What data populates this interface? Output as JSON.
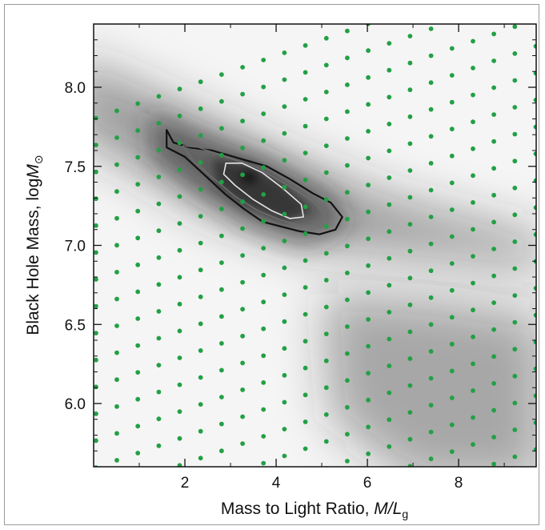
{
  "chart_data": {
    "type": "scatter",
    "title": "",
    "xlabel_parts": {
      "main": "Mass to Light Ratio, ",
      "var": "M/L",
      "sub": "g"
    },
    "ylabel_parts": {
      "main": "Black Hole Mass, log",
      "var": "M",
      "sub": "⊙"
    },
    "xlim": [
      0,
      9.7
    ],
    "ylim": [
      5.6,
      8.4
    ],
    "x_ticks": [
      2,
      4,
      6,
      8
    ],
    "x_tick_labels": [
      "2",
      "4",
      "6",
      "8"
    ],
    "y_ticks": [
      6.0,
      6.5,
      7.0,
      7.5,
      8.0
    ],
    "y_tick_labels": [
      "6.0",
      "6.5",
      "7.0",
      "7.5",
      "8.0"
    ],
    "grid": false,
    "colors": {
      "points": "#22a045",
      "contour_outer": "#111111",
      "contour_mid": "#6f6f6f",
      "contour_inner": "#e6e6e6",
      "shade": "#2a2a2a"
    },
    "sample_grid": {
      "description_hidden": true,
      "line_count": 28,
      "points_per_line": 22,
      "line_slope": 0.1,
      "line_spacing_y": 0.17
    },
    "best_fit": {
      "x": 3.4,
      "y": 7.43
    },
    "contours": [
      {
        "level": "outer",
        "points": [
          [
            1.6,
            7.73
          ],
          [
            1.75,
            7.65
          ],
          [
            2.1,
            7.62
          ],
          [
            2.6,
            7.6
          ],
          [
            3.2,
            7.55
          ],
          [
            3.8,
            7.5
          ],
          [
            4.3,
            7.42
          ],
          [
            4.8,
            7.33
          ],
          [
            5.2,
            7.27
          ],
          [
            5.45,
            7.18
          ],
          [
            5.3,
            7.1
          ],
          [
            4.95,
            7.07
          ],
          [
            4.5,
            7.09
          ],
          [
            4.1,
            7.12
          ],
          [
            3.7,
            7.15
          ],
          [
            3.3,
            7.23
          ],
          [
            2.9,
            7.32
          ],
          [
            2.45,
            7.44
          ],
          [
            2.0,
            7.56
          ],
          [
            1.6,
            7.62
          ]
        ]
      },
      {
        "level": "mid",
        "points": [
          [
            1.95,
            7.63
          ],
          [
            2.3,
            7.62
          ],
          [
            2.9,
            7.56
          ],
          [
            3.6,
            7.49
          ],
          [
            4.2,
            7.39
          ],
          [
            4.75,
            7.29
          ],
          [
            5.05,
            7.21
          ],
          [
            4.95,
            7.13
          ],
          [
            4.6,
            7.12
          ],
          [
            4.1,
            7.16
          ],
          [
            3.6,
            7.22
          ],
          [
            3.1,
            7.31
          ],
          [
            2.6,
            7.43
          ],
          [
            2.2,
            7.53
          ]
        ]
      },
      {
        "level": "inner",
        "points": [
          [
            2.9,
            7.52
          ],
          [
            3.25,
            7.52
          ],
          [
            3.7,
            7.46
          ],
          [
            4.15,
            7.36
          ],
          [
            4.55,
            7.26
          ],
          [
            4.6,
            7.18
          ],
          [
            4.3,
            7.17
          ],
          [
            3.9,
            7.22
          ],
          [
            3.5,
            7.29
          ],
          [
            3.1,
            7.38
          ],
          [
            2.85,
            7.45
          ]
        ]
      }
    ]
  }
}
